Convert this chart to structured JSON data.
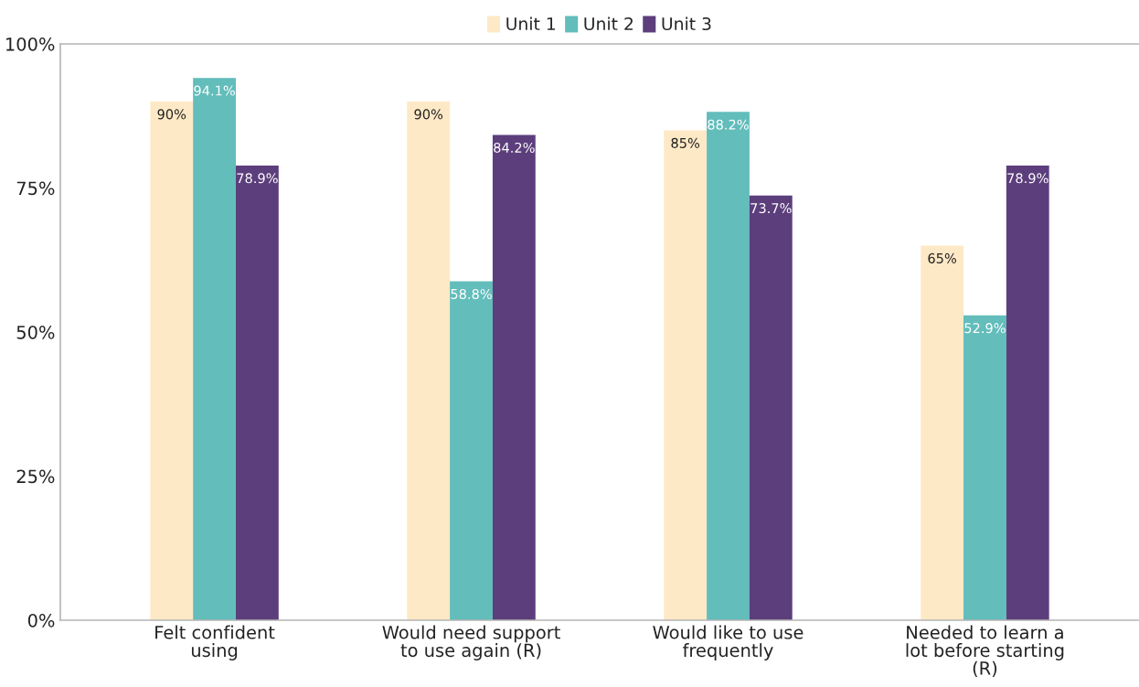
{
  "chart_data": {
    "type": "bar",
    "categories": [
      "Felt confident\nusing",
      "Would need support\nto use again (R)",
      "Would like to use\nfrequently",
      "Needed to learn a\nlot before starting\n(R)"
    ],
    "series": [
      {
        "name": "Unit 1",
        "color": "#fee9c6",
        "values": [
          90,
          90,
          85,
          65
        ],
        "value_labels": [
          "90%",
          "90%",
          "85%",
          "65%"
        ]
      },
      {
        "name": "Unit 2",
        "color": "#62bdbb",
        "values": [
          94.1,
          58.8,
          88.2,
          52.9
        ],
        "value_labels": [
          "94.1%",
          "58.8%",
          "88.2%",
          "52.9%"
        ]
      },
      {
        "name": "Unit 3",
        "color": "#5c3e7c",
        "values": [
          78.9,
          84.2,
          73.7,
          78.9
        ],
        "value_labels": [
          "78.9%",
          "84.2%",
          "73.7%",
          "78.9%"
        ]
      }
    ],
    "ylim": [
      0,
      100
    ],
    "yticks": [
      {
        "value": 0,
        "label": "0%"
      },
      {
        "value": 25,
        "label": "25%"
      },
      {
        "value": 50,
        "label": "50%"
      },
      {
        "value": 75,
        "label": "75%"
      },
      {
        "value": 100,
        "label": "100%"
      }
    ],
    "legend": "top",
    "grid": false
  }
}
